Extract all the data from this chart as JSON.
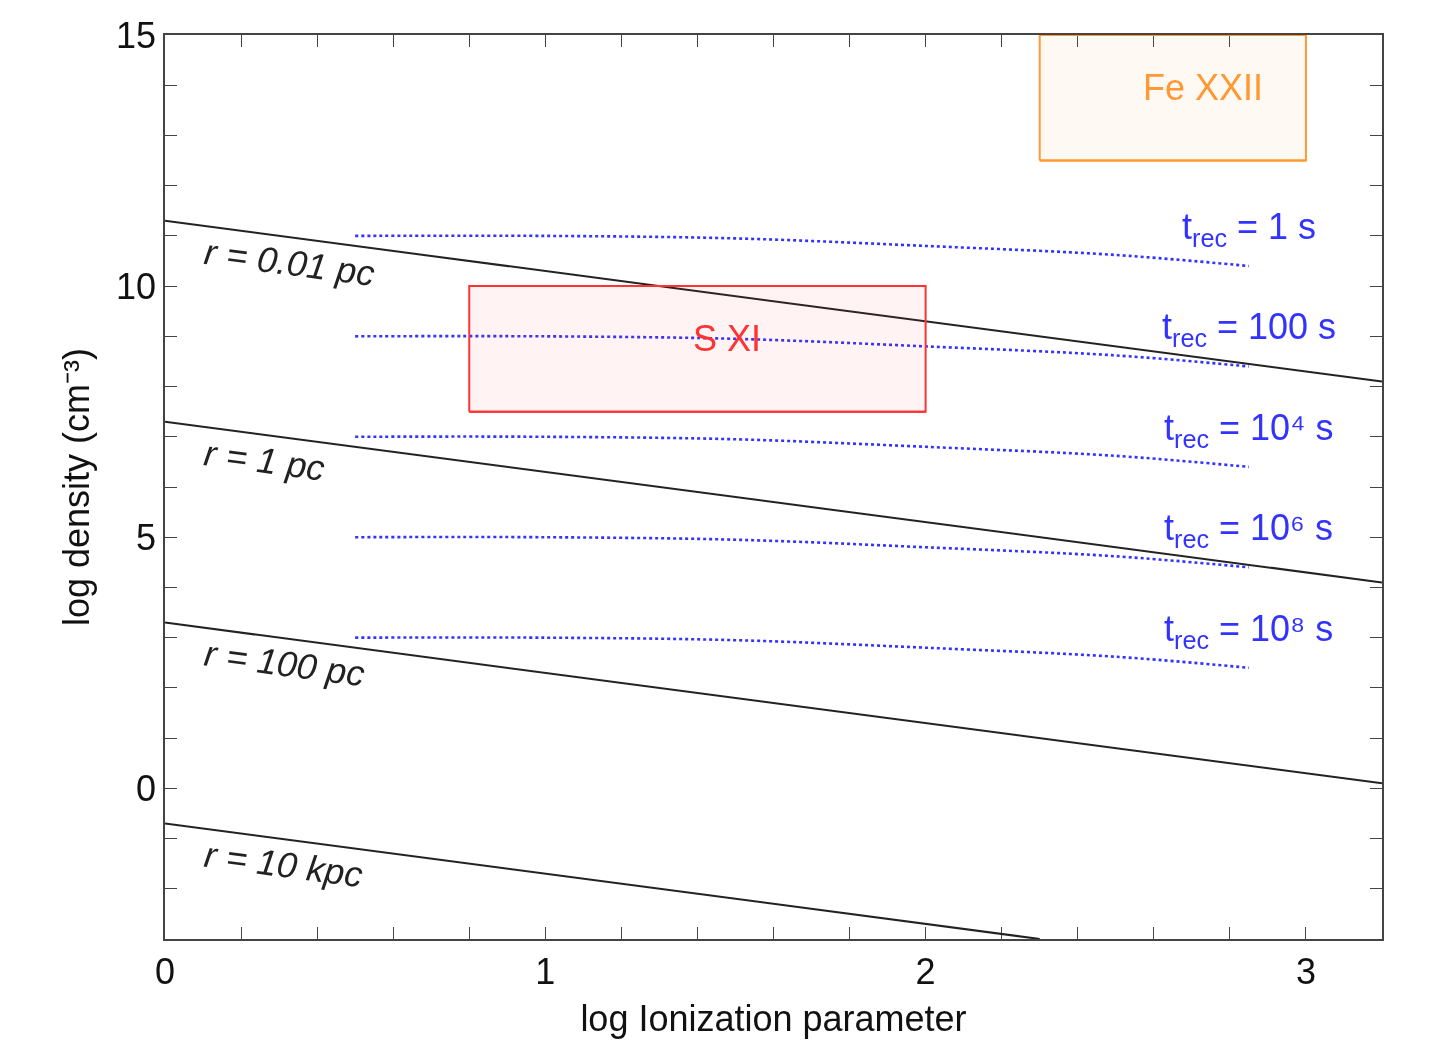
{
  "chart_data": {
    "type": "line",
    "xlabel": "log Ionization parameter",
    "ylabel": "log density (cm⁻³)",
    "xlim": [
      0,
      3.2
    ],
    "ylim": [
      -3,
      15
    ],
    "xticks": [
      0,
      {
        "value": 0.2,
        "label": null
      },
      {
        "value": 0.4,
        "label": null
      },
      {
        "value": 0.6,
        "label": null
      },
      {
        "value": 0.8,
        "label": null
      },
      1,
      {
        "value": 1.2,
        "label": null
      },
      {
        "value": 1.4,
        "label": null
      },
      {
        "value": 1.6,
        "label": null
      },
      {
        "value": 1.8,
        "label": null
      },
      2,
      {
        "value": 2.2,
        "label": null
      },
      {
        "value": 2.4,
        "label": null
      },
      {
        "value": 2.6,
        "label": null
      },
      {
        "value": 2.8,
        "label": null
      },
      3
    ],
    "yticks": [
      {
        "value": -2,
        "label": null
      },
      {
        "value": -1,
        "label": null
      },
      0,
      {
        "value": 1,
        "label": null
      },
      {
        "value": 2,
        "label": null
      },
      {
        "value": 3,
        "label": null
      },
      {
        "value": 4,
        "label": null
      },
      5,
      {
        "value": 6,
        "label": null
      },
      {
        "value": 7,
        "label": null
      },
      {
        "value": 8,
        "label": null
      },
      {
        "value": 9,
        "label": null
      },
      10,
      {
        "value": 11,
        "label": null
      },
      {
        "value": 12,
        "label": null
      },
      {
        "value": 13,
        "label": null
      },
      {
        "value": 14,
        "label": null
      },
      15
    ],
    "series": [
      {
        "color": "#222222",
        "line_style": "solid",
        "x": [
          0,
          3.2
        ],
        "values": [
          11.3,
          8.1
        ]
      },
      {
        "color": "#222222",
        "line_style": "solid",
        "x": [
          0,
          3.2
        ],
        "values": [
          7.3,
          4.1
        ]
      },
      {
        "color": "#222222",
        "line_style": "solid",
        "x": [
          0,
          3.2
        ],
        "values": [
          3.3,
          0.1
        ]
      },
      {
        "color": "#222222",
        "line_style": "solid",
        "x": [
          0,
          2.3
        ],
        "values": [
          -0.7,
          -3.0
        ]
      },
      {
        "color": "#3333ff",
        "line_style": "dotted",
        "x": [
          0.5,
          1,
          1.5,
          2,
          2.5,
          2.85
        ],
        "values": [
          11.0,
          11.0,
          10.95,
          10.8,
          10.62,
          10.4
        ]
      },
      {
        "color": "#3333ff",
        "line_style": "dotted",
        "x": [
          0.5,
          1,
          1.5,
          2,
          2.5,
          2.85
        ],
        "values": [
          9.0,
          9.0,
          8.95,
          8.8,
          8.62,
          8.4
        ]
      },
      {
        "color": "#3333ff",
        "line_style": "dotted",
        "x": [
          0.5,
          1,
          1.5,
          2,
          2.5,
          2.85
        ],
        "values": [
          7.0,
          7.0,
          6.95,
          6.8,
          6.62,
          6.4
        ]
      },
      {
        "color": "#3333ff",
        "line_style": "dotted",
        "x": [
          0.5,
          1,
          1.5,
          2,
          2.5,
          2.85
        ],
        "values": [
          5.0,
          5.0,
          4.95,
          4.8,
          4.62,
          4.4
        ]
      },
      {
        "color": "#3333ff",
        "line_style": "dotted",
        "x": [
          0.5,
          1,
          1.5,
          2,
          2.5,
          2.85
        ],
        "values": [
          3.0,
          3.0,
          2.95,
          2.8,
          2.62,
          2.4
        ]
      },
      {
        "color": "#ff3333",
        "line_style": "solid",
        "x": [
          0.8,
          2.0
        ],
        "values": [
          7.5,
          7.5
        ],
        "lower": [
          7.5,
          7.5
        ],
        "upper": [
          10,
          10
        ]
      },
      {
        "color": "#ff9933",
        "line_style": "solid",
        "x": [
          2.3,
          3.0
        ],
        "values": [
          12.5,
          12.5
        ],
        "lower": [
          12.5,
          12.5
        ],
        "upper": [
          15,
          15
        ]
      }
    ],
    "annotations": [
      "r = 0.01 pc",
      "r = 1 pc",
      "r = 100 pc",
      "r = 10 kpc",
      "t$_{rec}$ = 1 s",
      "t$_{rec}$ = 100 s",
      "t$_{rec}$ = 10⁴ s",
      "t$_{rec}$ = 10⁶ s",
      "t$_{rec}$ = 10⁸ s",
      "S XI",
      "Fe XXII"
    ]
  }
}
